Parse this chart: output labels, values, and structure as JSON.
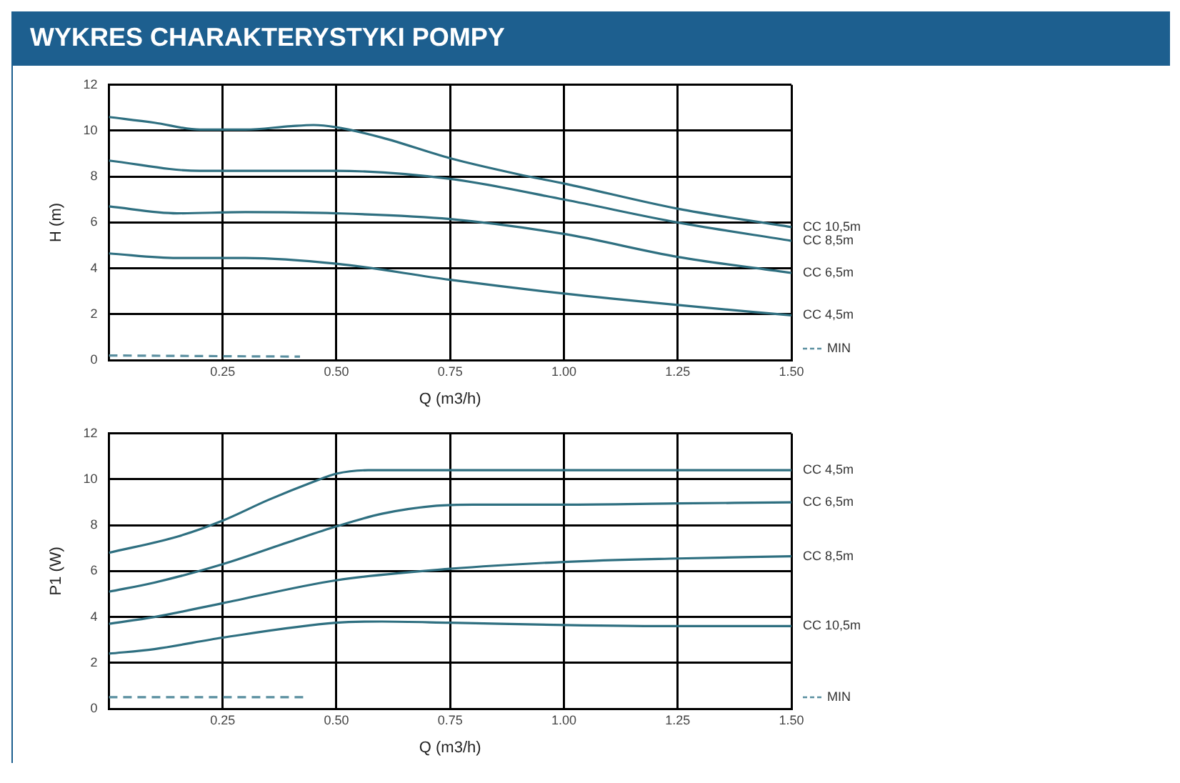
{
  "chart_data": [
    {
      "type": "line",
      "title": "WYKRES CHARAKTERYSTYKI POMPY",
      "xlabel": "Q (m3/h)",
      "ylabel": "H (m)",
      "xlim": [
        0,
        1.5
      ],
      "ylim": [
        0,
        12
      ],
      "xticks": [
        {
          "value": 0,
          "label": null
        },
        0.25,
        {
          "value": 0.5,
          "label": "0.50"
        },
        0.75,
        {
          "value": 1,
          "label": "1.00"
        },
        1.25,
        {
          "value": 1.5,
          "label": "1.50"
        }
      ],
      "yticks": [
        0,
        2,
        4,
        6,
        8,
        10,
        12
      ],
      "grid": true,
      "legend": "bottom right",
      "marker": "none",
      "series": [
        {
          "name": "CC 10,5m",
          "color": "#2e6f80",
          "x": [
            0,
            0.1,
            0.2,
            0.3,
            0.4,
            0.45,
            0.5,
            0.6,
            0.75,
            0.9,
            1.0,
            1.25,
            1.5
          ],
          "values": [
            10.6,
            10.35,
            10.05,
            10.05,
            10.2,
            10.25,
            10.15,
            9.7,
            8.8,
            8.1,
            7.7,
            6.6,
            5.8
          ]
        },
        {
          "name": "CC 8,5m",
          "color": "#2e6f80",
          "x": [
            0,
            0.2,
            0.5,
            0.75,
            1.0,
            1.25,
            1.5
          ],
          "values": [
            8.7,
            8.25,
            8.25,
            7.9,
            7.0,
            6.0,
            5.2
          ]
        },
        {
          "name": "CC 6,5m",
          "color": "#2e6f80",
          "x": [
            0,
            0.15,
            0.3,
            0.5,
            0.75,
            1.0,
            1.25,
            1.5
          ],
          "values": [
            6.7,
            6.4,
            6.45,
            6.4,
            6.15,
            5.5,
            4.5,
            3.8
          ]
        },
        {
          "name": "CC 4,5m",
          "color": "#2e6f80",
          "x": [
            0,
            0.15,
            0.3,
            0.5,
            0.75,
            1.0,
            1.25,
            1.5
          ],
          "values": [
            4.65,
            4.45,
            4.45,
            4.2,
            3.5,
            2.9,
            2.4,
            1.95
          ]
        },
        {
          "name": "MIN",
          "color": "#5a8fa0",
          "line_style": "dashed",
          "x": [
            0,
            0.42
          ],
          "values": [
            0.2,
            0.15
          ]
        }
      ]
    },
    {
      "type": "line",
      "xlabel": "Q (m3/h)",
      "ylabel": "P1 (W)",
      "xlim": [
        0,
        1.5
      ],
      "ylim": [
        0,
        12
      ],
      "xticks": [
        {
          "value": 0,
          "label": null
        },
        0.25,
        {
          "value": 0.5,
          "label": "0.50"
        },
        0.75,
        {
          "value": 1,
          "label": "1.00"
        },
        1.25,
        {
          "value": 1.5,
          "label": "1.50"
        }
      ],
      "yticks": [
        0,
        2,
        4,
        6,
        8,
        10,
        12
      ],
      "grid": true,
      "legend": "bottom right",
      "marker": "none",
      "series": [
        {
          "name": "CC 4,5m",
          "color": "#2e6f80",
          "x": [
            0,
            0.15,
            0.25,
            0.35,
            0.45,
            0.5,
            0.57,
            0.75,
            1.0,
            1.5
          ],
          "values": [
            6.8,
            7.5,
            8.2,
            9.1,
            9.9,
            10.25,
            10.4,
            10.4,
            10.4,
            10.4
          ]
        },
        {
          "name": "CC 6,5m",
          "color": "#2e6f80",
          "x": [
            0,
            0.1,
            0.25,
            0.4,
            0.5,
            0.6,
            0.72,
            0.8,
            1.0,
            1.25,
            1.5
          ],
          "values": [
            5.1,
            5.5,
            6.3,
            7.3,
            7.95,
            8.5,
            8.85,
            8.9,
            8.9,
            8.95,
            9.0
          ]
        },
        {
          "name": "CC 8,5m",
          "color": "#2e6f80",
          "x": [
            0,
            0.1,
            0.25,
            0.5,
            0.75,
            1.0,
            1.25,
            1.5
          ],
          "values": [
            3.7,
            4.0,
            4.6,
            5.6,
            6.1,
            6.4,
            6.55,
            6.65
          ]
        },
        {
          "name": "CC 10,5m",
          "color": "#2e6f80",
          "x": [
            0,
            0.1,
            0.25,
            0.5,
            0.6,
            0.75,
            1.0,
            1.25,
            1.5
          ],
          "values": [
            2.4,
            2.6,
            3.1,
            3.75,
            3.8,
            3.75,
            3.65,
            3.6,
            3.6
          ]
        },
        {
          "name": "MIN",
          "color": "#5a8fa0",
          "line_style": "dashed",
          "x": [
            0,
            0.43
          ],
          "values": [
            0.5,
            0.5
          ]
        }
      ]
    }
  ]
}
